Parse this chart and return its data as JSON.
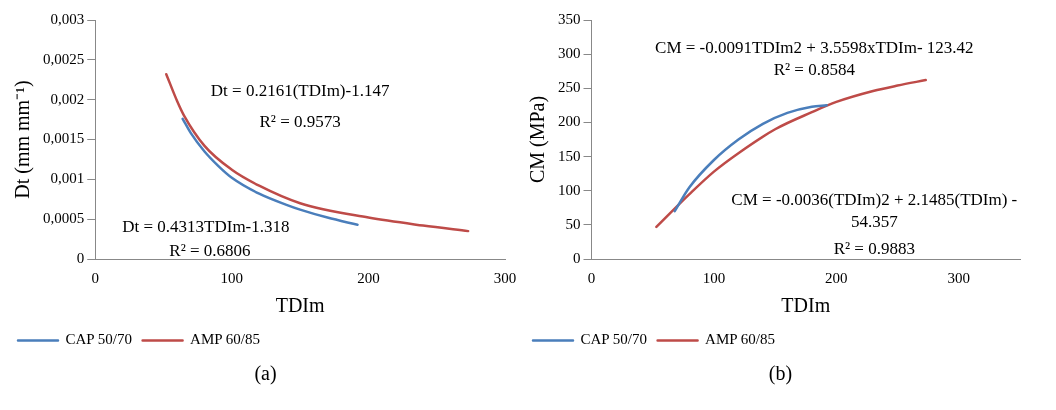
{
  "chart_data": [
    {
      "type": "line",
      "xlabel": "TDIm",
      "ylabel": "Dt (mm mm⁻¹)",
      "xlim": [
        0,
        300
      ],
      "xticks": [
        0,
        100,
        200,
        300
      ],
      "ylim": [
        0,
        0.003
      ],
      "yticks": [
        0,
        {
          "value": 0.0005,
          "label": "0,0005"
        },
        {
          "value": 0.001,
          "label": "0,001"
        },
        {
          "value": 0.0015,
          "label": "0,0015"
        },
        {
          "value": 0.002,
          "label": "0,002"
        },
        {
          "value": 0.0025,
          "label": "0,0025"
        },
        {
          "value": 0.003,
          "label": "0,003"
        }
      ],
      "legend": "bottom",
      "marker": "none",
      "line_style": "solid",
      "grid": false,
      "series": [
        {
          "name": "CAP 50/70",
          "color": "#4a7ebb",
          "x": [
            64,
            70,
            80,
            90,
            100,
            120,
            140,
            150,
            170,
            192
          ],
          "values": [
            0.00176,
            0.00158,
            0.00135,
            0.00117,
            0.00102,
            0.00082,
            0.00068,
            0.00062,
            0.00052,
            0.00043
          ]
        },
        {
          "name": "AMP 60/85",
          "color": "#be4b48",
          "x": [
            52,
            60,
            65,
            80,
            100,
            120,
            150,
            200,
            240,
            273
          ],
          "values": [
            0.00232,
            0.00198,
            0.0018,
            0.00142,
            0.00112,
            0.00092,
            0.0007,
            0.00052,
            0.00042,
            0.00035
          ]
        }
      ],
      "annotations": [
        "Dt = 0.2161(TDIm)-1.147",
        "R² = 0.9573",
        "Dt = 0.4313TDIm-1.318",
        "R² = 0.6806",
        "(a)"
      ]
    },
    {
      "type": "line",
      "xlabel": "TDIm",
      "ylabel": "CM (MPa)",
      "xlim": [
        0,
        350
      ],
      "xticks": [
        0,
        100,
        200,
        300
      ],
      "ylim": [
        0,
        350
      ],
      "yticks": [
        0,
        50,
        100,
        150,
        200,
        250,
        300,
        350
      ],
      "legend": "bottom",
      "marker": "none",
      "line_style": "solid",
      "grid": false,
      "series": [
        {
          "name": "CAP 50/70",
          "color": "#4a7ebb",
          "x": [
            68,
            80,
            100,
            120,
            140,
            160,
            180,
            192
          ],
          "values": [
            70,
            105,
            145,
            175,
            198,
            214,
            223,
            225
          ]
        },
        {
          "name": "AMP 60/85",
          "color": "#be4b48",
          "x": [
            53,
            80,
            100,
            120,
            150,
            180,
            200,
            230,
            250,
            273
          ],
          "values": [
            47,
            95,
            128,
            155,
            190,
            215,
            230,
            246,
            254,
            262
          ]
        }
      ],
      "annotations": [
        "CM = -0.0091TDIm2 + 3.5598xTDIm- 123.42",
        "R² = 0.8584",
        "CM = -0.0036(TDIm)2 + 2.1485(TDIm) - 54.357",
        "R² = 0.9883",
        "(b)"
      ]
    }
  ]
}
